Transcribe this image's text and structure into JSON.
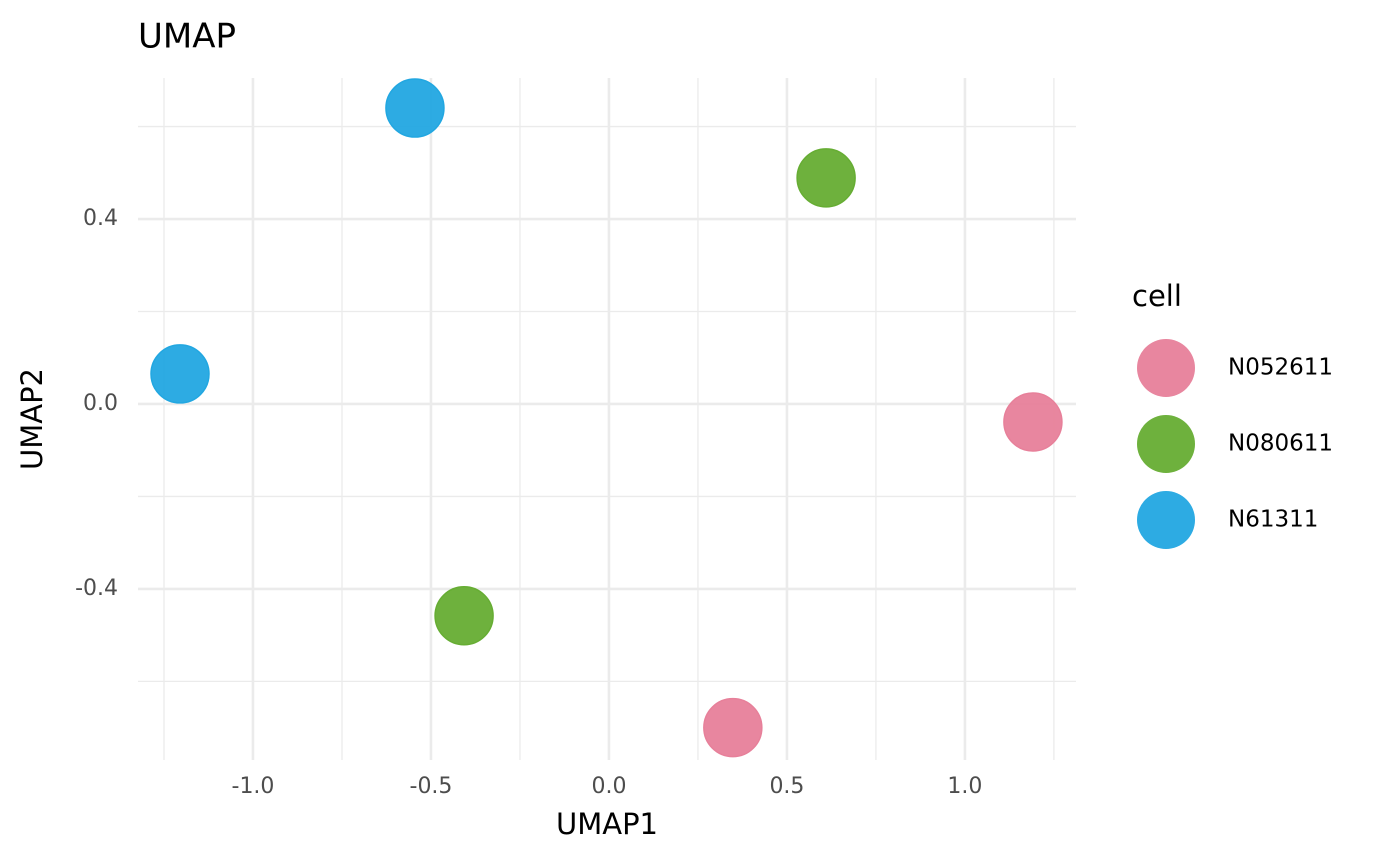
{
  "chart_data": {
    "type": "scatter",
    "title": "UMAP",
    "x_label": "UMAP1",
    "y_label": "UMAP2",
    "legend_title": "cell",
    "legend": "right",
    "grid": true,
    "xlim": [
      -1.323,
      1.312
    ],
    "ylim": [
      -0.77,
      0.705
    ],
    "xticks": [
      {
        "value": -1,
        "label": "-1.0"
      },
      -0.5,
      {
        "value": 0,
        "label": "0.0"
      },
      0.5,
      {
        "value": 1,
        "label": "1.0"
      }
    ],
    "yticks": [
      -0.4,
      {
        "value": 0,
        "label": "0.0"
      },
      0.4
    ],
    "series": [
      {
        "name": "N052611",
        "color": "#e7809a",
        "x": [
          1.191,
          0.348
        ],
        "values": [
          -0.039,
          -0.7
        ]
      },
      {
        "name": "N080611",
        "color": "#66ad33",
        "x": [
          0.61,
          -0.407
        ],
        "values": [
          0.489,
          -0.458
        ]
      },
      {
        "name": "N61311",
        "color": "#22a7e1",
        "x": [
          -0.545,
          -1.205
        ],
        "values": [
          0.64,
          0.065
        ]
      }
    ]
  }
}
